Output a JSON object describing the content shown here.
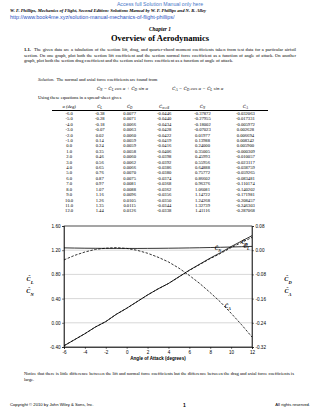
{
  "access": "Access full Solution Manual only here",
  "book": "W. F. Phillips, Mechanics of Flight, Second Edition: Solutions Manual by W. F. Phillips and N. R. Alley",
  "url": "http://www.book4me.xyz/solution-manual-mechanics-of-flight-phillips/",
  "chapter": "Chapter 1",
  "title": "Overview of Aerodynamics",
  "problem": {
    "number": "1.1.",
    "text": "The given data are a tabulation of the section lift, drag, and quarter-chord moment coefficients taken from test data for a particular airfoil section. On one graph, plot both the section lift coefficient and the section normal force coefficient as a function of angle of attack. On another graph, plot both the section drag coefficient and the section axial force coefficient as a function of angle of attack."
  },
  "solution": {
    "label": "Solution.",
    "text": "The normal and axial force coefficients are found from"
  },
  "equations": [
    [
      {
        "text": "C̃",
        "sub": "N"
      },
      {
        "text": " = "
      },
      {
        "text": "C̃",
        "sub": "L"
      },
      {
        "text": " cos α + "
      },
      {
        "text": "C̃",
        "sub": "D"
      },
      {
        "text": " sin α"
      }
    ],
    [
      {
        "text": "C̃",
        "sub": "A"
      },
      {
        "text": " = "
      },
      {
        "text": "C̃",
        "sub": "D"
      },
      {
        "text": " cos α − "
      },
      {
        "text": "C̃",
        "sub": "L"
      },
      {
        "text": " sin α"
      }
    ]
  ],
  "table_intro": "Using these equations in a spread-sheet gives",
  "table": {
    "header": [
      [
        {
          "text": "α (deg)"
        }
      ],
      [
        {
          "text": "C̃",
          "sub": "L"
        }
      ],
      [
        {
          "text": "C̃",
          "sub": "D"
        }
      ],
      [
        {
          "text": "C̃",
          "sub": "m c/4"
        }
      ],
      [
        {
          "text": "C̃",
          "sub": "N"
        }
      ],
      [
        {
          "text": "C̃",
          "sub": "A"
        }
      ]
    ],
    "rows": [
      [
        "-6.0",
        "-0.38",
        "0.0077",
        "-0.0446",
        "-0.37872",
        "-0.032063"
      ],
      [
        "-5.0",
        "-0.28",
        "0.0071",
        "-0.0440",
        "-0.27955",
        "-0.017331"
      ],
      [
        "-4.0",
        "-0.18",
        "0.0066",
        "-0.0434",
        "-0.18002",
        "-0.005972"
      ],
      [
        "-3.0",
        "-0.07",
        "0.0063",
        "-0.0428",
        "-0.07023",
        "0.002628"
      ],
      [
        "-2.0",
        "0.02",
        "0.0060",
        "-0.0422",
        "0.01977",
        "0.006694"
      ],
      [
        "-1.0",
        "0.14",
        "0.0059",
        "-0.0419",
        "0.13988",
        "0.008342"
      ],
      [
        "0.0",
        "0.24",
        "0.0059",
        "-0.0416",
        "0.24000",
        "0.005900"
      ],
      [
        "1.0",
        "0.35",
        "0.0058",
        "-0.0406",
        "0.35005",
        "-0.000309"
      ],
      [
        "2.0",
        "0.46",
        "0.0060",
        "-0.0398",
        "0.45993",
        "-0.010057"
      ],
      [
        "3.0",
        "0.56",
        "0.0062",
        "-0.0392",
        "0.55956",
        "-0.023117"
      ],
      [
        "4.0",
        "0.65",
        "0.0066",
        "-0.0386",
        "0.64888",
        "-0.038759"
      ],
      [
        "5.0",
        "0.76",
        "0.0070",
        "-0.0380",
        "0.75772",
        "-0.059265"
      ],
      [
        "6.0",
        "0.87",
        "0.0075",
        "-0.0374",
        "0.86602",
        "-0.083481"
      ],
      [
        "7.0",
        "0.97",
        "0.0081",
        "-0.0368",
        "0.96376",
        "-0.110174"
      ],
      [
        "8.0",
        "1.07",
        "0.0088",
        "-0.0362",
        "1.06081",
        "-0.140202"
      ],
      [
        "9.0",
        "1.16",
        "0.0096",
        "-0.0356",
        "1.14722",
        "-0.171981"
      ],
      [
        "10.0",
        "1.26",
        "0.0105",
        "-0.0350",
        "1.24268",
        "-0.208457"
      ],
      [
        "11.0",
        "1.35",
        "0.0115",
        "-0.0344",
        "1.32739",
        "-0.246303"
      ],
      [
        "12.0",
        "1.44",
        "0.0126",
        "-0.0338",
        "1.41116",
        "-0.287068"
      ]
    ]
  },
  "chart_data": {
    "type": "line",
    "x_label": "Angle of Attack (degrees)",
    "x": [
      -6,
      -5,
      -4,
      -3,
      -2,
      -1,
      0,
      1,
      2,
      3,
      4,
      5,
      6,
      7,
      8,
      9,
      10,
      11,
      12
    ],
    "xlim": [
      -6,
      12
    ],
    "xticks": [
      -6,
      -4,
      -2,
      0,
      2,
      4,
      6,
      8,
      10,
      12
    ],
    "ylim": [
      -0.4,
      1.6
    ],
    "yticks": [
      {
        "value": -0.4,
        "label": "-0.40"
      },
      {
        "value": 0,
        "label": "0.00"
      },
      {
        "value": 0.4,
        "label": "0.40"
      },
      {
        "value": 0.8,
        "label": "0.80"
      },
      {
        "value": 1.2,
        "label": "1.20"
      },
      {
        "value": 1.6,
        "label": "1.60"
      }
    ],
    "y2lim": [
      -0.32,
      0.08
    ],
    "y2ticks": [
      {
        "value": -0.32,
        "label": "-0.32"
      },
      {
        "value": -0.24,
        "label": "-0.24"
      },
      {
        "value": -0.16,
        "label": "-0.16"
      },
      {
        "value": -0.08,
        "label": "-0.08"
      },
      {
        "value": 0,
        "label": "0.00"
      },
      {
        "value": 0.08,
        "label": "0.08"
      }
    ],
    "grid": true,
    "series": [
      {
        "name": {
          "text": "C̃",
          "sub": "L"
        },
        "color": "#000000",
        "line_style": "solid",
        "values": [
          -0.38,
          -0.28,
          -0.18,
          -0.07,
          0.02,
          0.14,
          0.24,
          0.35,
          0.46,
          0.56,
          0.65,
          0.76,
          0.87,
          0.97,
          1.07,
          1.16,
          1.26,
          1.35,
          1.44
        ]
      },
      {
        "name": {
          "text": "C̃",
          "sub": "N"
        },
        "color": "#000000",
        "line_style": "dashed",
        "values": [
          -0.37872,
          -0.27955,
          -0.18002,
          -0.07023,
          0.01977,
          0.13988,
          0.24,
          0.35005,
          0.45993,
          0.55956,
          0.64888,
          0.75772,
          0.86602,
          0.96376,
          1.06081,
          1.14722,
          1.24268,
          1.32739,
          1.41116
        ]
      },
      {
        "name": {
          "text": "C̃",
          "sub": "D"
        },
        "color": "#000000",
        "line_style": "solid",
        "axis": "y2",
        "values": [
          0.0077,
          0.0071,
          0.0066,
          0.0063,
          0.006,
          0.0059,
          0.0059,
          0.0058,
          0.006,
          0.0062,
          0.0066,
          0.007,
          0.0075,
          0.0081,
          0.0088,
          0.0096,
          0.0105,
          0.0115,
          0.0126
        ]
      },
      {
        "name": {
          "text": "C̃",
          "sub": "A"
        },
        "color": "#000000",
        "line_style": "dashed",
        "axis": "y2",
        "values": [
          -0.032063,
          -0.017331,
          -0.005972,
          0.002628,
          0.006694,
          0.008342,
          0.0059,
          -0.000309,
          -0.010057,
          -0.023117,
          -0.038759,
          -0.059265,
          -0.083481,
          -0.110174,
          -0.140202,
          -0.171981,
          -0.208457,
          -0.246303,
          -0.287068
        ]
      }
    ]
  },
  "note": "Notice that there is little difference between the lift and normal force coefficients but the difference between the drag and axial force coefficients is large.",
  "footer": {
    "copyright": "Copyright © 2010 by John Wiley & Sons, Inc.",
    "page": "1",
    "rights": "All rights reserved."
  }
}
